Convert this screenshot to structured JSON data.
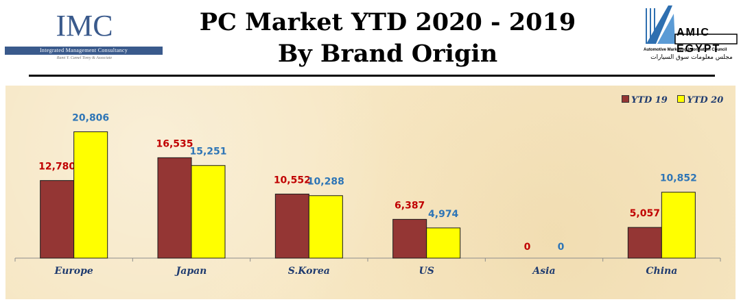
{
  "header": {
    "title_line1": "PC Market YTD 2020 - 2019",
    "title_line2": "By Brand Origin",
    "left_logo": {
      "mark": "IMC",
      "name": "Integrated Management Consultancy",
      "tagline": "Rami Y. Camel Tomy & Associate"
    },
    "right_logo": {
      "mark": "AMIC EGYPT",
      "caption": "Automotive Marketing Information Council",
      "arabic": "مجلس معلومات سوق السيارات"
    }
  },
  "colors": {
    "ytd19": "#943634",
    "ytd20": "#ffff00",
    "label19": "#c00000",
    "label20": "#2e75b6",
    "axis_label": "#1f3b6f"
  },
  "chart_data": {
    "type": "bar",
    "categories": [
      "Europe",
      "Japan",
      "S.Korea",
      "US",
      "Asia",
      "China"
    ],
    "series": [
      {
        "name": "YTD 19",
        "values": [
          12780,
          16535,
          10552,
          6387,
          0,
          5057
        ],
        "labels": [
          "12,780",
          "16,535",
          "10,552",
          "6,387",
          "0",
          "5,057"
        ]
      },
      {
        "name": "YTD 20",
        "values": [
          20806,
          15251,
          10288,
          4974,
          0,
          10852
        ],
        "labels": [
          "20,806",
          "15,251",
          "10,288",
          "4,974",
          "0",
          "10,852"
        ]
      }
    ],
    "legend_position": "top-right",
    "grid": false,
    "ylim": [
      0,
      24000
    ]
  }
}
